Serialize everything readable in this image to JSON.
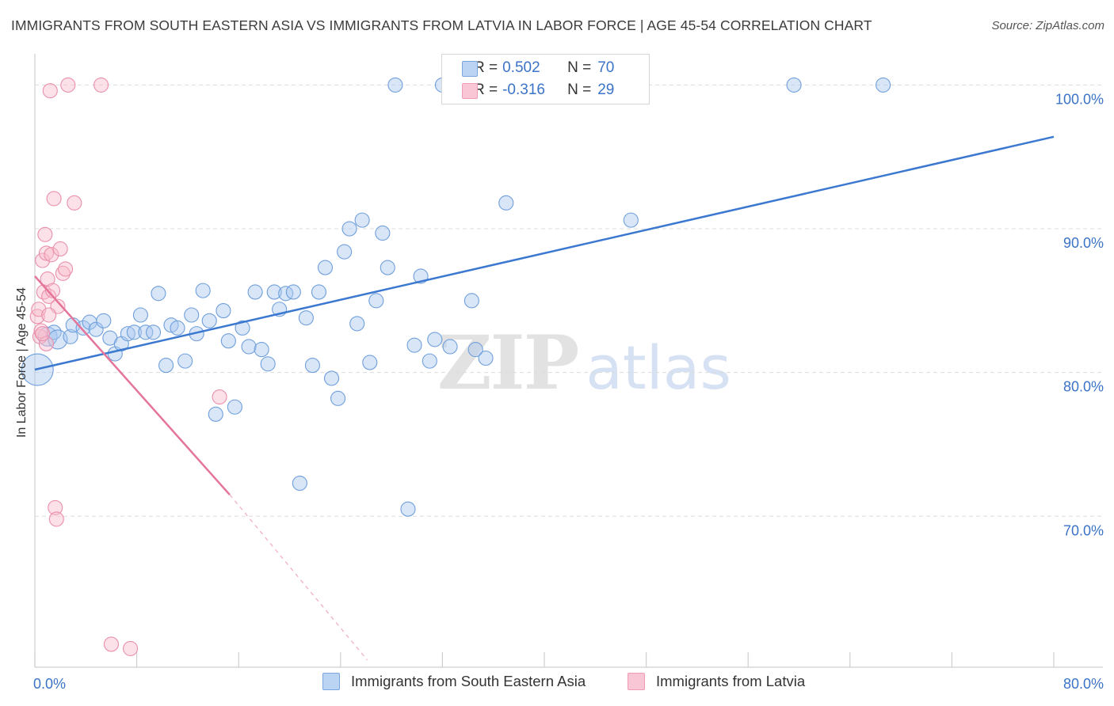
{
  "title": "IMMIGRANTS FROM SOUTH EASTERN ASIA VS IMMIGRANTS FROM LATVIA IN LABOR FORCE | AGE 45-54 CORRELATION CHART",
  "source": "Source: ZipAtlas.com",
  "watermark": {
    "zip": "ZIP",
    "atlas": "atlas"
  },
  "legend": {
    "r_label": "R =",
    "n_label": "N =",
    "rows": [
      {
        "r": "0.502",
        "n": "70"
      },
      {
        "r": "-0.316",
        "n": "29"
      }
    ]
  },
  "chart_data": {
    "type": "scatter",
    "xlabel": "",
    "ylabel": "In Labor Force | Age 45-54",
    "xlim": [
      0,
      80
    ],
    "ylim": [
      59.5,
      102.5
    ],
    "x_tick_labels": [
      "0.0%",
      "80.0%"
    ],
    "y_ticks": [
      70,
      80,
      90,
      100
    ],
    "y_tick_labels": [
      "70.0%",
      "80.0%",
      "90.0%",
      "100.0%"
    ],
    "grid": true,
    "legend_placement": "top-center",
    "series": [
      {
        "name": "Immigrants from South Eastern Asia",
        "color": "#a9c8ef",
        "edge": "#6f9fdb",
        "trend": {
          "x": [
            0,
            80
          ],
          "y": [
            80.2,
            96.4
          ],
          "color": "#3b78d0"
        },
        "points": [
          [
            0.2,
            80.2
          ],
          [
            1.0,
            82.5
          ],
          [
            1.5,
            82.8
          ],
          [
            1.8,
            82.3
          ],
          [
            2.8,
            82.5
          ],
          [
            3.0,
            83.3
          ],
          [
            3.8,
            83.1
          ],
          [
            4.3,
            83.5
          ],
          [
            4.8,
            83.0
          ],
          [
            5.4,
            83.6
          ],
          [
            5.9,
            82.4
          ],
          [
            6.3,
            81.3
          ],
          [
            6.8,
            82.0
          ],
          [
            7.3,
            82.7
          ],
          [
            7.8,
            82.8
          ],
          [
            8.3,
            84.0
          ],
          [
            8.7,
            82.8
          ],
          [
            9.3,
            82.8
          ],
          [
            9.7,
            85.5
          ],
          [
            10.3,
            80.5
          ],
          [
            10.7,
            83.3
          ],
          [
            11.2,
            83.1
          ],
          [
            11.8,
            80.8
          ],
          [
            12.3,
            84.0
          ],
          [
            12.7,
            82.7
          ],
          [
            13.2,
            85.7
          ],
          [
            13.7,
            83.6
          ],
          [
            14.2,
            77.1
          ],
          [
            14.8,
            84.3
          ],
          [
            15.2,
            82.2
          ],
          [
            15.7,
            77.6
          ],
          [
            16.3,
            83.1
          ],
          [
            16.8,
            81.8
          ],
          [
            17.3,
            85.6
          ],
          [
            17.8,
            81.6
          ],
          [
            18.3,
            80.6
          ],
          [
            18.8,
            85.6
          ],
          [
            19.2,
            84.4
          ],
          [
            19.7,
            85.5
          ],
          [
            20.3,
            85.6
          ],
          [
            20.8,
            72.3
          ],
          [
            21.3,
            83.8
          ],
          [
            21.8,
            80.5
          ],
          [
            22.3,
            85.6
          ],
          [
            22.8,
            87.3
          ],
          [
            23.3,
            79.6
          ],
          [
            23.8,
            78.2
          ],
          [
            24.3,
            88.4
          ],
          [
            24.7,
            90.0
          ],
          [
            25.3,
            83.4
          ],
          [
            25.7,
            90.6
          ],
          [
            26.3,
            80.7
          ],
          [
            26.8,
            85.0
          ],
          [
            27.3,
            89.7
          ],
          [
            27.7,
            87.3
          ],
          [
            28.3,
            100.0
          ],
          [
            29.3,
            70.5
          ],
          [
            29.8,
            81.9
          ],
          [
            30.3,
            86.7
          ],
          [
            31.0,
            80.8
          ],
          [
            31.4,
            82.3
          ],
          [
            32.0,
            100.0
          ],
          [
            32.6,
            81.8
          ],
          [
            34.3,
            85.0
          ],
          [
            34.6,
            81.6
          ],
          [
            35.4,
            81.0
          ],
          [
            37.0,
            91.8
          ],
          [
            46.8,
            90.6
          ],
          [
            59.6,
            100.0
          ],
          [
            66.6,
            100.0
          ]
        ]
      },
      {
        "name": "Immigrants from Latvia",
        "color": "#f8bccd",
        "edge": "#ea8fab",
        "trend": {
          "x": [
            0,
            15.3
          ],
          "y": [
            86.7,
            71.5
          ],
          "dash_to": [
            26.1,
            60.0
          ],
          "color": "#e5749b"
        },
        "points": [
          [
            0.2,
            83.9
          ],
          [
            0.3,
            84.4
          ],
          [
            0.4,
            82.5
          ],
          [
            0.5,
            82.9
          ],
          [
            0.6,
            87.8
          ],
          [
            0.7,
            85.6
          ],
          [
            0.8,
            89.6
          ],
          [
            0.9,
            88.3
          ],
          [
            1.0,
            86.5
          ],
          [
            1.1,
            85.3
          ],
          [
            1.2,
            99.6
          ],
          [
            1.3,
            88.2
          ],
          [
            1.4,
            85.7
          ],
          [
            1.5,
            92.1
          ],
          [
            1.6,
            70.6
          ],
          [
            1.7,
            69.8
          ],
          [
            1.8,
            84.6
          ],
          [
            2.0,
            88.6
          ],
          [
            2.2,
            86.9
          ],
          [
            2.4,
            87.2
          ],
          [
            2.6,
            100.0
          ],
          [
            3.1,
            91.8
          ],
          [
            5.2,
            100.0
          ],
          [
            6.0,
            61.1
          ],
          [
            7.5,
            60.8
          ],
          [
            14.5,
            78.3
          ],
          [
            0.9,
            82.0
          ],
          [
            1.1,
            84.0
          ],
          [
            0.6,
            82.7
          ]
        ]
      }
    ]
  },
  "bottom_legend": [
    {
      "label": "Immigrants from South Eastern Asia"
    },
    {
      "label": "Immigrants from Latvia"
    }
  ]
}
